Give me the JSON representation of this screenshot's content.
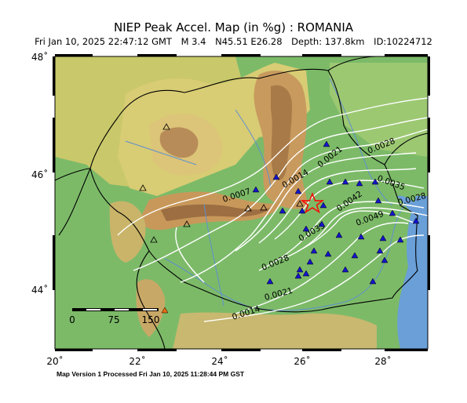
{
  "header": {
    "title": "NIEP Peak Accel. Map (in %g) : ROMANIA",
    "datetime": "Fri Jan 10, 2025 22:47:12 GMT",
    "magnitude": "M 3.4",
    "location": "N45.51 E26.28",
    "depth": "Depth: 137.8km",
    "event_id": "ID:10224712"
  },
  "axes": {
    "lon_ticks": [
      "20˚",
      "22˚",
      "24˚",
      "26˚",
      "28˚"
    ],
    "lat_ticks": [
      "48˚",
      "46˚",
      "44˚"
    ]
  },
  "scale_bar": {
    "labels": [
      "0",
      "75",
      "150"
    ]
  },
  "contours": [
    "0.0007",
    "0.0014",
    "0.0021",
    "0.0028",
    "0.0035",
    "0.0042",
    "0.0049",
    "0.0021",
    "0.0028",
    "0.0035",
    "0.0028",
    "0.0014"
  ],
  "footer": "Map Version 1 Processed Fri Jan 10, 2025 11:28:44 PM GST",
  "colors": {
    "epicenter": "#ff0000",
    "station_triangle": "#1414c8",
    "contour": "#ffffff",
    "water": "#6a9fd8"
  }
}
